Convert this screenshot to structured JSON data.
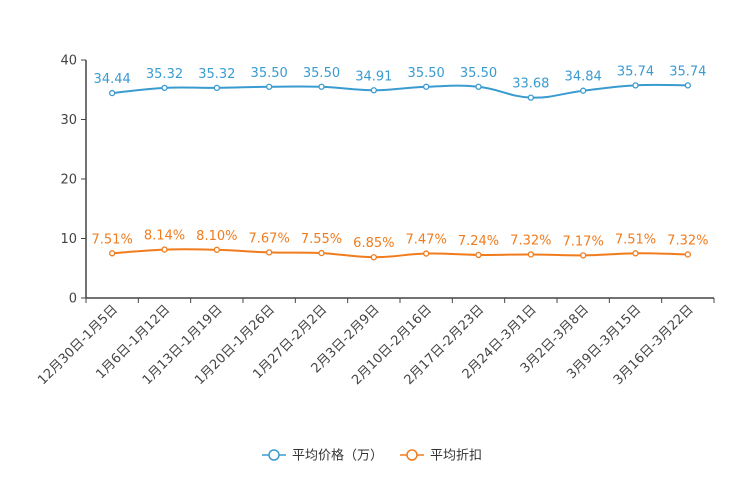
{
  "chart_data": {
    "type": "line",
    "categories": [
      "12月30日-1月5日",
      "1月6日-1月12日",
      "1月13日-1月19日",
      "1月20日-1月26日",
      "1月27日-2月2日",
      "2月3日-2月9日",
      "2月10日-2月16日",
      "2月17日-2月23日",
      "2月24日-3月1日",
      "3月2日-3月8日",
      "3月9日-3月15日",
      "3月16日-3月22日"
    ],
    "ylim": [
      0,
      40
    ],
    "yticks": [
      0,
      10,
      20,
      30,
      40
    ],
    "series": [
      {
        "name": "平均价格（万）",
        "color": "#3a9bd0",
        "values": [
          34.44,
          35.32,
          35.32,
          35.5,
          35.5,
          34.91,
          35.5,
          35.5,
          33.68,
          34.84,
          35.74,
          35.74
        ],
        "labels": [
          "34.44",
          "35.32",
          "35.32",
          "35.50",
          "35.50",
          "34.91",
          "35.50",
          "35.50",
          "33.68",
          "34.84",
          "35.74",
          "35.74"
        ]
      },
      {
        "name": "平均折扣",
        "color": "#f07c1e",
        "values": [
          7.51,
          8.14,
          8.1,
          7.67,
          7.55,
          6.85,
          7.47,
          7.24,
          7.32,
          7.17,
          7.51,
          7.32
        ],
        "labels": [
          "7.51%",
          "8.14%",
          "8.10%",
          "7.67%",
          "7.55%",
          "6.85%",
          "7.47%",
          "7.24%",
          "7.32%",
          "7.17%",
          "7.51%",
          "7.32%"
        ]
      }
    ],
    "legend": [
      {
        "label": "平均价格（万）",
        "color": "#3a9bd0"
      },
      {
        "label": "平均折扣",
        "color": "#f07c1e"
      }
    ],
    "legend_position": "bottom-center",
    "grid": false
  }
}
